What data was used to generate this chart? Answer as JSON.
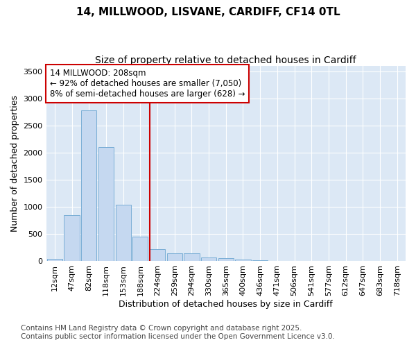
{
  "title_line1": "14, MILLWOOD, LISVANE, CARDIFF, CF14 0TL",
  "title_line2": "Size of property relative to detached houses in Cardiff",
  "xlabel": "Distribution of detached houses by size in Cardiff",
  "ylabel": "Number of detached properties",
  "categories": [
    "12sqm",
    "47sqm",
    "82sqm",
    "118sqm",
    "153sqm",
    "188sqm",
    "224sqm",
    "259sqm",
    "294sqm",
    "330sqm",
    "365sqm",
    "400sqm",
    "436sqm",
    "471sqm",
    "506sqm",
    "541sqm",
    "577sqm",
    "612sqm",
    "647sqm",
    "683sqm",
    "718sqm"
  ],
  "values": [
    50,
    850,
    2780,
    2100,
    1040,
    460,
    220,
    150,
    150,
    75,
    55,
    30,
    20,
    8,
    4,
    2,
    1,
    1,
    0,
    0,
    0
  ],
  "bar_color": "#c5d8f0",
  "bar_edge_color": "#7aaed6",
  "vline_color": "#cc0000",
  "annotation_text_line1": "14 MILLWOOD: 208sqm",
  "annotation_text_line2": "← 92% of detached houses are smaller (7,050)",
  "annotation_text_line3": "8% of semi-detached houses are larger (628) →",
  "annotation_box_color": "#cc0000",
  "ylim": [
    0,
    3600
  ],
  "yticks": [
    0,
    500,
    1000,
    1500,
    2000,
    2500,
    3000,
    3500
  ],
  "bg_color": "#dce8f5",
  "fig_bg_color": "#ffffff",
  "grid_color": "#ffffff",
  "footer_line1": "Contains HM Land Registry data © Crown copyright and database right 2025.",
  "footer_line2": "Contains public sector information licensed under the Open Government Licence v3.0.",
  "title_fontsize": 11,
  "subtitle_fontsize": 10,
  "axis_label_fontsize": 9,
  "tick_fontsize": 8,
  "footer_fontsize": 7.5,
  "ann_fontsize": 8.5
}
